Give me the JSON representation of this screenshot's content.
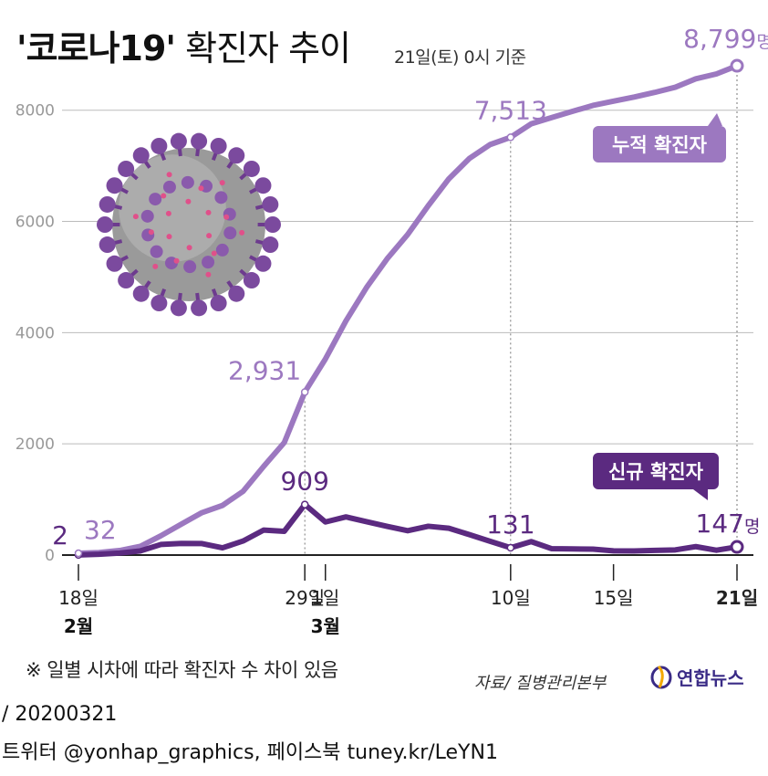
{
  "header": {
    "title_quoted": "'코로나19'",
    "title_rest": " 확진자 추이",
    "basis": "21일(토) 0시 기준"
  },
  "note": "※ 일별 시차에 따라 확진자 수 차이 있음",
  "source": "자료/ 질병관리본부",
  "brand": "연합뉴스",
  "footer": {
    "date_line": "/ 20200321",
    "social_line": "트위터 @yonhap_graphics, 페이스북 tuney.kr/LeYN1"
  },
  "colors": {
    "cumulative": "#9c78c0",
    "new": "#5b2a80",
    "axis": "#222222",
    "grid": "#bbbbbb"
  },
  "chart_data": {
    "type": "line",
    "ylim": [
      0,
      8800
    ],
    "yticks": [
      0,
      2000,
      4000,
      6000,
      8000
    ],
    "ytick_labels": [
      "0",
      "2000",
      "4000",
      "6000",
      "8000"
    ],
    "grid": true,
    "xtick_days": [
      0,
      11,
      12,
      21,
      26,
      32
    ],
    "xtick_labels": [
      "18일",
      "29일",
      "1일",
      "10일",
      "15일",
      "21일"
    ],
    "month_labels": [
      {
        "day": 0,
        "label": "2월"
      },
      {
        "day": 12,
        "label": "3월"
      }
    ],
    "series": [
      {
        "name": "누적 확진자",
        "color": "#9c78c0",
        "values": [
          32,
          46,
          82,
          156,
          346,
          556,
          763,
          893,
          1146,
          1595,
          2022,
          2931,
          3526,
          4212,
          4812,
          5328,
          5766,
          6284,
          6767,
          7134,
          7382,
          7513,
          7755,
          7869,
          7979,
          8086,
          8162,
          8236,
          8320,
          8413,
          8565,
          8652,
          8799
        ]
      },
      {
        "name": "신규 확진자",
        "color": "#5b2a80",
        "values": [
          2,
          14,
          36,
          74,
          190,
          210,
          207,
          130,
          253,
          449,
          427,
          909,
          595,
          686,
          600,
          516,
          438,
          518,
          483,
          367,
          248,
          131,
          242,
          114,
          110,
          107,
          76,
          74,
          84,
          93,
          152,
          87,
          147
        ]
      }
    ],
    "annotations": [
      {
        "series": 1,
        "day": 0,
        "text": "2"
      },
      {
        "series": 0,
        "day": 0,
        "text": "32"
      },
      {
        "series": 0,
        "day": 11,
        "text": "2,931"
      },
      {
        "series": 1,
        "day": 11,
        "text": "909"
      },
      {
        "series": 0,
        "day": 21,
        "text": "7,513"
      },
      {
        "series": 1,
        "day": 21,
        "text": "131"
      },
      {
        "series": 0,
        "day": 32,
        "text": "8,799",
        "unit": "명"
      },
      {
        "series": 1,
        "day": 32,
        "text": "147",
        "unit": "명"
      }
    ],
    "callouts": [
      {
        "series": 0,
        "text": "누적 확진자"
      },
      {
        "series": 1,
        "text": "신규 확진자"
      }
    ]
  }
}
